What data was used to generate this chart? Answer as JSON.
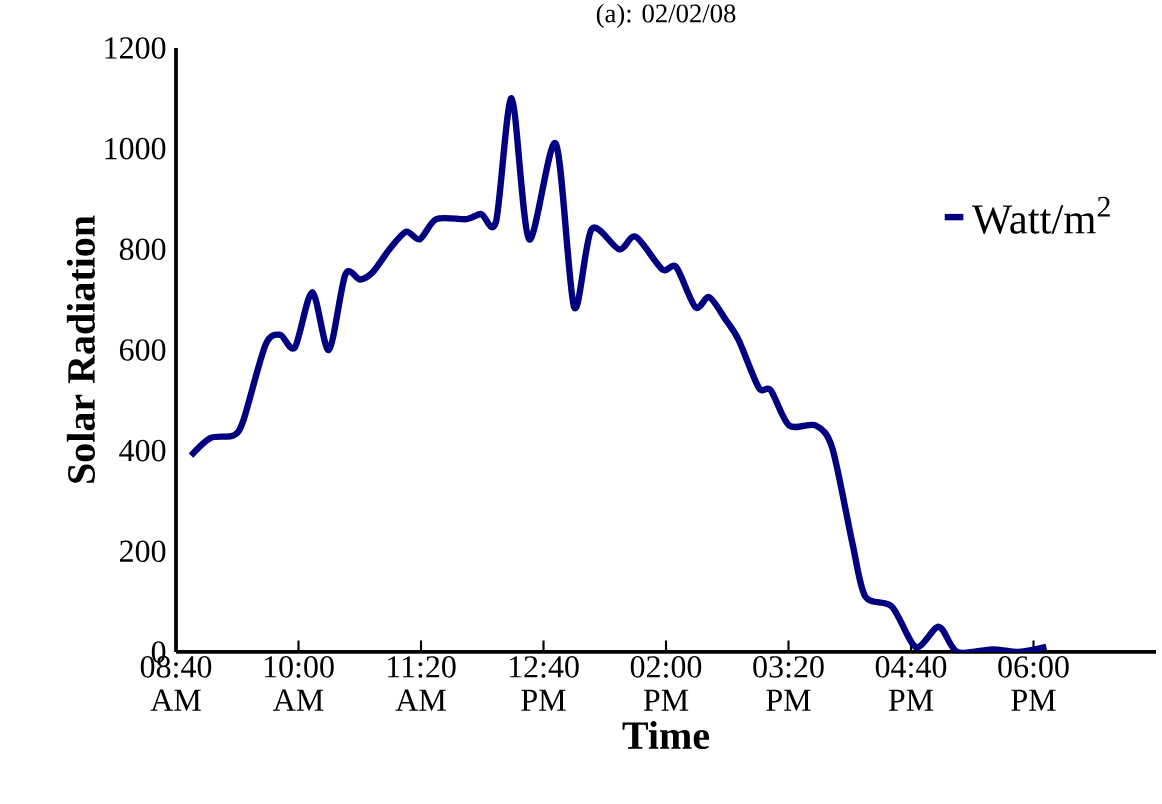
{
  "chart_data": {
    "type": "line",
    "title": "(a): 02/02/08",
    "xlabel": "Time",
    "ylabel": "Solar Radiation",
    "xlim": [
      8.6667,
      19.3333
    ],
    "xticks": [
      {
        "value": 8.6667,
        "label": "08:40 AM"
      },
      {
        "value": 10,
        "label": "10:00 AM"
      },
      {
        "value": 11.3333,
        "label": "11:20 AM"
      },
      {
        "value": 12.6667,
        "label": "12:40 PM"
      },
      {
        "value": 14,
        "label": "02:00 PM"
      },
      {
        "value": 15.3333,
        "label": "03:20 PM"
      },
      {
        "value": 16.6667,
        "label": "04:40 PM"
      },
      {
        "value": 18,
        "label": "06:00 PM"
      }
    ],
    "ylim": [
      0,
      1200
    ],
    "yticks": [
      0,
      200,
      400,
      600,
      800,
      1000,
      1200
    ],
    "legend": "right",
    "line_style": "solid",
    "series": [
      {
        "name": "Watt/m$^{2}$",
        "color": "#000080",
        "x": [
          8.83,
          9.04,
          9.29,
          9.4,
          9.64,
          9.8,
          9.96,
          10.15,
          10.33,
          10.51,
          10.67,
          10.81,
          10.99,
          11.17,
          11.32,
          11.5,
          11.83,
          11.99,
          12.15,
          12.32,
          12.51,
          12.8,
          13.0,
          13.19,
          13.49,
          13.67,
          13.96,
          14.11,
          14.32,
          14.47,
          14.65,
          14.79,
          15.01,
          15.14,
          15.34,
          15.63,
          15.81,
          16.03,
          16.17,
          16.46,
          16.72,
          16.97,
          17.17,
          17.55,
          17.84,
          18.14
        ],
        "values": [
          390,
          425,
          430,
          460,
          610,
          630,
          605,
          715,
          600,
          750,
          740,
          755,
          800,
          835,
          820,
          860,
          860,
          870,
          855,
          1100,
          820,
          1010,
          685,
          840,
          800,
          825,
          760,
          765,
          685,
          705,
          660,
          620,
          525,
          520,
          450,
          450,
          405,
          215,
          110,
          90,
          10,
          50,
          0,
          5,
          0,
          10
        ]
      }
    ]
  }
}
